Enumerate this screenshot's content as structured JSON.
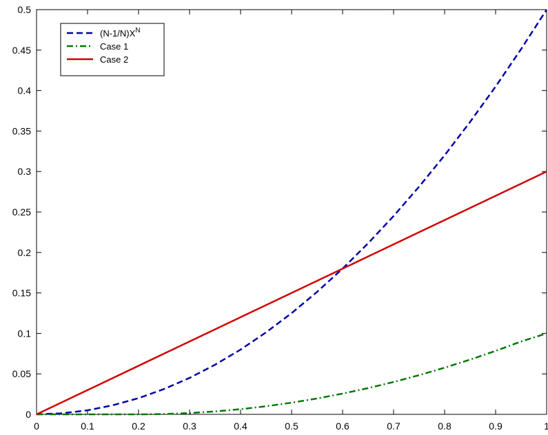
{
  "chart_data": {
    "type": "line",
    "title": "",
    "xlabel": "",
    "ylabel": "",
    "xlim": [
      0,
      1
    ],
    "ylim": [
      0,
      0.5
    ],
    "x_ticks": [
      "0",
      "0.1",
      "0.2",
      "0.3",
      "0.4",
      "0.5",
      "0.6",
      "0.7",
      "0.8",
      "0.9",
      "1"
    ],
    "y_ticks": [
      "0",
      "0.05",
      "0.1",
      "0.15",
      "0.2",
      "0.25",
      "0.3",
      "0.35",
      "0.4",
      "0.45",
      "0.5"
    ],
    "grid": false,
    "legend_position": "top-left",
    "x": [
      0,
      0.05,
      0.1,
      0.15,
      0.2,
      0.25,
      0.3,
      0.35,
      0.4,
      0.45,
      0.5,
      0.55,
      0.6,
      0.65,
      0.7,
      0.75,
      0.8,
      0.85,
      0.9,
      0.95,
      1.0
    ],
    "series": [
      {
        "name": "(N-1/N)X",
        "name_superscript": "N",
        "color": "#0000a8",
        "style": "dashed",
        "values": [
          0,
          0.0013,
          0.005,
          0.0113,
          0.02,
          0.0313,
          0.045,
          0.0613,
          0.08,
          0.1013,
          0.125,
          0.1513,
          0.18,
          0.2113,
          0.245,
          0.2813,
          0.32,
          0.3613,
          0.405,
          0.4513,
          0.5
        ]
      },
      {
        "name": "Case 1",
        "color": "#007800",
        "style": "dashdot",
        "values": [
          0,
          0.0,
          0.0,
          0.0,
          0.0,
          0.0004,
          0.0016,
          0.0036,
          0.0064,
          0.01,
          0.0144,
          0.0196,
          0.0256,
          0.0324,
          0.04,
          0.0484,
          0.0576,
          0.0676,
          0.0784,
          0.09,
          0.1
        ]
      },
      {
        "name": "Case 2",
        "color": "#d00000",
        "style": "solid",
        "values": [
          0,
          0.015,
          0.03,
          0.045,
          0.06,
          0.075,
          0.09,
          0.105,
          0.12,
          0.135,
          0.15,
          0.165,
          0.18,
          0.195,
          0.21,
          0.225,
          0.24,
          0.255,
          0.27,
          0.285,
          0.3
        ]
      }
    ]
  }
}
